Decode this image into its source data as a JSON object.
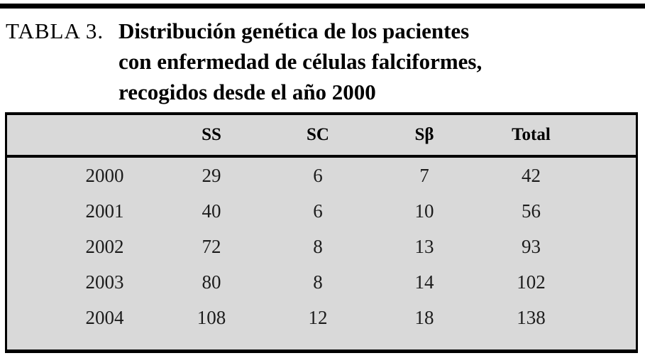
{
  "caption": {
    "label": "TABLA 3.",
    "lines": [
      "Distribución genética de los pacientes",
      "con enfermedad de células falciformes,",
      "recogidos desde el año 2000"
    ]
  },
  "table": {
    "columns": [
      "",
      "SS",
      "SC",
      "Sβ",
      "Total"
    ],
    "rows": [
      [
        "2000",
        "29",
        "6",
        "7",
        "42"
      ],
      [
        "2001",
        "40",
        "6",
        "10",
        "56"
      ],
      [
        "2002",
        "72",
        "8",
        "13",
        "93"
      ],
      [
        "2003",
        "80",
        "8",
        "14",
        "102"
      ],
      [
        "2004",
        "108",
        "12",
        "18",
        "138"
      ]
    ]
  },
  "colors": {
    "table_background": "#d9d9d9",
    "rule": "#000000",
    "text": "#000000"
  },
  "chart_data": {
    "type": "table",
    "title": "TABLA 3. Distribución genética de los pacientes con enfermedad de células falciformes, recogidos desde el año 2000",
    "categories": [
      "2000",
      "2001",
      "2002",
      "2003",
      "2004"
    ],
    "series": [
      {
        "name": "SS",
        "values": [
          29,
          40,
          72,
          80,
          108
        ]
      },
      {
        "name": "SC",
        "values": [
          6,
          6,
          8,
          8,
          12
        ]
      },
      {
        "name": "Sβ",
        "values": [
          7,
          10,
          13,
          14,
          18
        ]
      },
      {
        "name": "Total",
        "values": [
          42,
          56,
          93,
          102,
          138
        ]
      }
    ]
  }
}
